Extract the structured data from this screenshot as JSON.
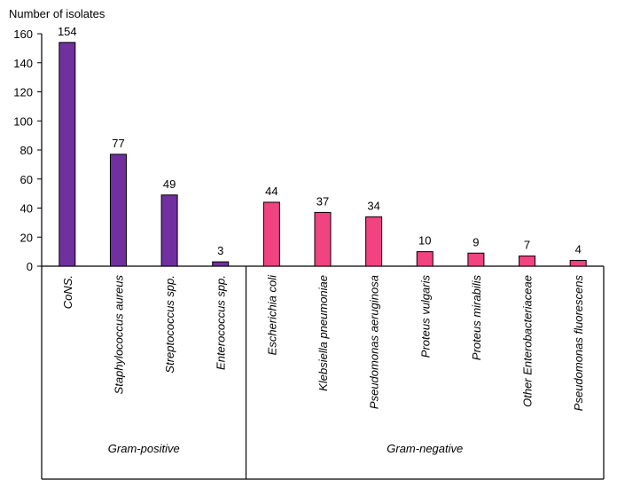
{
  "chart_data": {
    "type": "bar",
    "y_label": "Number of isolates",
    "categories": [
      "CoNS.",
      "Staphylococcus aureus",
      "Streptococcus spp.",
      "Enterococcus spp.",
      "Escherichia coli",
      "Klebsiella pneumoniae",
      "Pseudomonas aeruginosa",
      "Proteus vulgaris",
      "Proteus mirabilis",
      "Other Enterobacteriaceae",
      "Pseudomonas fluorescens"
    ],
    "series": [
      {
        "name": "Gram-positive",
        "color": "#7030a0",
        "values": [
          154,
          77,
          49,
          3,
          null,
          null,
          null,
          null,
          null,
          null,
          null
        ]
      },
      {
        "name": "Gram-negative",
        "color": "#f0437f",
        "values": [
          null,
          null,
          null,
          null,
          44,
          37,
          34,
          10,
          9,
          7,
          4
        ]
      }
    ],
    "ylim": [
      0,
      160
    ],
    "yticks": [
      0,
      20,
      40,
      60,
      80,
      100,
      120,
      140,
      160
    ]
  }
}
